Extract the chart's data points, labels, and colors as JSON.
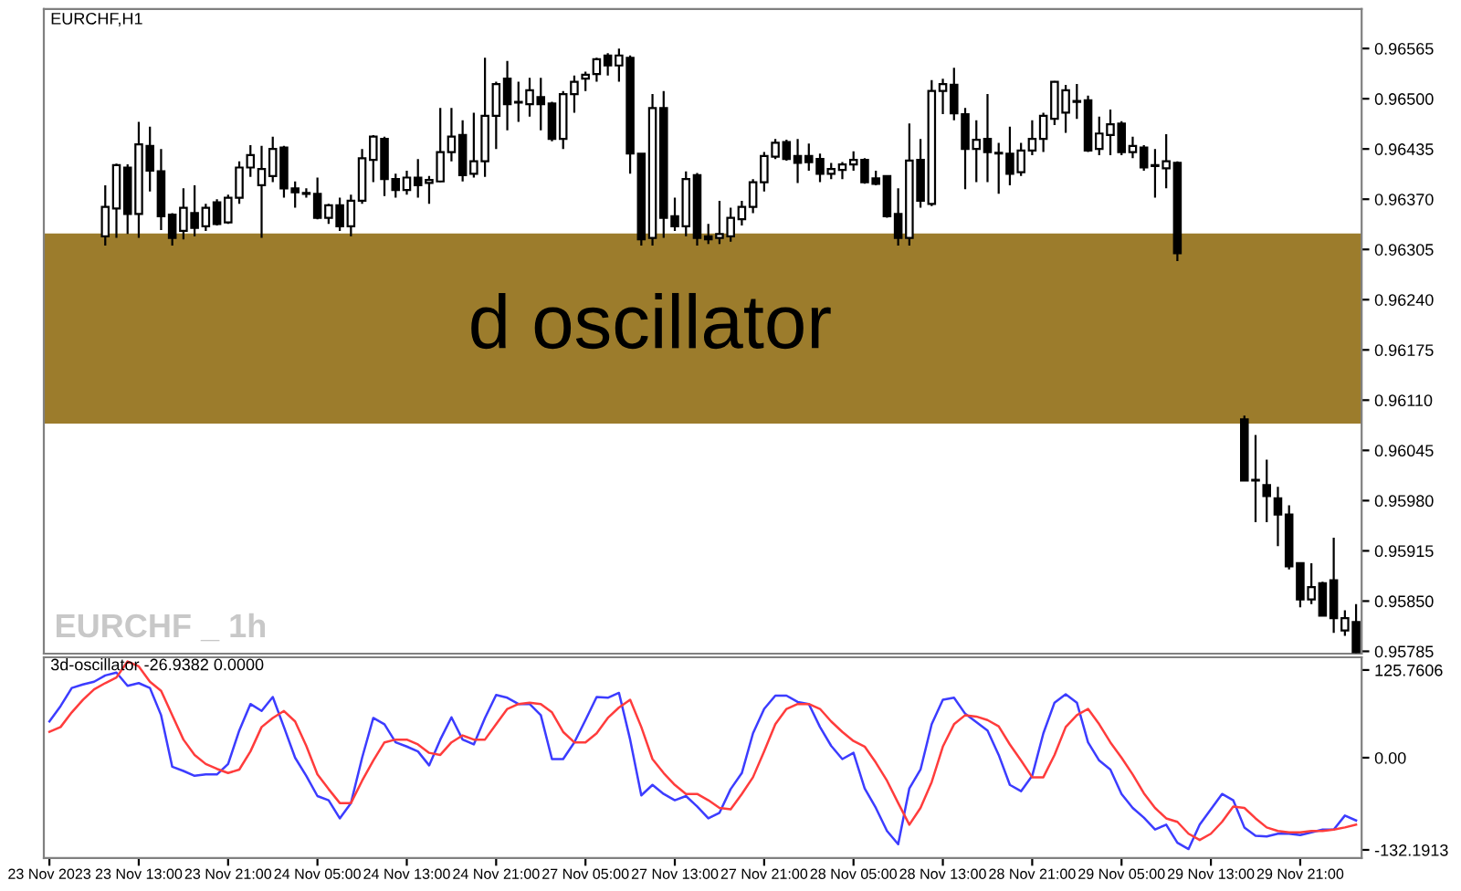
{
  "chart_data": [
    {
      "type": "candlestick",
      "title": "EURCHF,H1",
      "annotations": [
        "d oscillator",
        "EURCHF _ 1h"
      ],
      "tick_labels": "y",
      "ohlc": [
        null,
        null,
        null,
        null,
        null,
        [
          0.96322,
          0.96388,
          0.9631,
          0.9636
        ],
        [
          0.96358,
          0.96416,
          0.9632,
          0.96414
        ],
        [
          0.96411,
          0.96415,
          0.96325,
          0.96351
        ],
        [
          0.96351,
          0.9647,
          0.9632,
          0.96441
        ],
        [
          0.96439,
          0.96464,
          0.9638,
          0.96407
        ],
        [
          0.96406,
          0.96435,
          0.9633,
          0.96348
        ],
        [
          0.9635,
          0.96352,
          0.9631,
          0.9632
        ],
        [
          0.96329,
          0.96384,
          0.96318,
          0.96359
        ],
        [
          0.96352,
          0.96388,
          0.96322,
          0.96333
        ],
        [
          0.96335,
          0.96364,
          0.96329,
          0.96359
        ],
        [
          0.96366,
          0.9637,
          0.96336,
          0.96338
        ],
        [
          0.9634,
          0.96376,
          0.96338,
          0.96372
        ],
        [
          0.96372,
          0.96419,
          0.96364,
          0.96411
        ],
        [
          0.96411,
          0.9644,
          0.96399,
          0.96427
        ],
        [
          0.96388,
          0.96439,
          0.9632,
          0.96409
        ],
        [
          0.964,
          0.96451,
          0.96392,
          0.96435
        ],
        [
          0.96437,
          0.96439,
          0.96372,
          0.96384
        ],
        [
          0.96384,
          0.96393,
          0.96359,
          0.96379
        ],
        [
          0.96377,
          0.96384,
          0.96372,
          0.96378
        ],
        [
          0.96377,
          0.96398,
          0.96344,
          0.96346
        ],
        [
          0.96346,
          0.96364,
          0.96338,
          0.96362
        ],
        [
          0.96362,
          0.96372,
          0.96329,
          0.96335
        ],
        [
          0.96335,
          0.96376,
          0.96322,
          0.96368
        ],
        [
          0.96368,
          0.96435,
          0.96364,
          0.96423
        ],
        [
          0.96421,
          0.96453,
          0.96392,
          0.96451
        ],
        [
          0.96448,
          0.96451,
          0.96374,
          0.96396
        ],
        [
          0.96396,
          0.96403,
          0.96372,
          0.96382
        ],
        [
          0.96382,
          0.96407,
          0.96376,
          0.96398
        ],
        [
          0.96398,
          0.96422,
          0.96372,
          0.96388
        ],
        [
          0.96391,
          0.964,
          0.96364,
          0.96395
        ],
        [
          0.96393,
          0.96488,
          0.96392,
          0.96431
        ],
        [
          0.96431,
          0.96488,
          0.96419,
          0.96451
        ],
        [
          0.96453,
          0.96472,
          0.96393,
          0.96401
        ],
        [
          0.96403,
          0.96482,
          0.96398,
          0.96419
        ],
        [
          0.96419,
          0.96553,
          0.96399,
          0.96478
        ],
        [
          0.96478,
          0.96522,
          0.96435,
          0.96519
        ],
        [
          0.96526,
          0.96549,
          0.96459,
          0.96493
        ],
        [
          0.96495,
          0.96522,
          0.9647,
          0.96496
        ],
        [
          0.96493,
          0.96527,
          0.96477,
          0.96511
        ],
        [
          0.96502,
          0.96527,
          0.96459,
          0.96493
        ],
        [
          0.96494,
          0.96496,
          0.96445,
          0.96448
        ],
        [
          0.96448,
          0.9651,
          0.96435,
          0.96506
        ],
        [
          0.96506,
          0.9653,
          0.96482,
          0.96522
        ],
        [
          0.96526,
          0.96535,
          0.9651,
          0.96531
        ],
        [
          0.96532,
          0.96553,
          0.96522,
          0.96551
        ],
        [
          0.96556,
          0.96559,
          0.9653,
          0.96543
        ],
        [
          0.96543,
          0.96565,
          0.96522,
          0.96556
        ],
        [
          0.96553,
          0.96556,
          0.96403,
          0.96429
        ],
        [
          0.96429,
          0.96429,
          0.9631,
          0.96318
        ],
        [
          0.9632,
          0.96506,
          0.9631,
          0.96488
        ],
        [
          0.96488,
          0.9651,
          0.9632,
          0.96346
        ],
        [
          0.96348,
          0.96372,
          0.96329,
          0.96335
        ],
        [
          0.96335,
          0.96406,
          0.96322,
          0.96396
        ],
        [
          0.96401,
          0.96404,
          0.9631,
          0.9632
        ],
        [
          0.96322,
          0.96338,
          0.96312,
          0.96318
        ],
        [
          0.9632,
          0.96368,
          0.96312,
          0.96325
        ],
        [
          0.96322,
          0.96359,
          0.96315,
          0.96346
        ],
        [
          0.96344,
          0.96368,
          0.96336,
          0.9636
        ],
        [
          0.9636,
          0.96396,
          0.96352,
          0.96392
        ],
        [
          0.96392,
          0.96431,
          0.9638,
          0.96426
        ],
        [
          0.96425,
          0.96448,
          0.96422,
          0.96443
        ],
        [
          0.96444,
          0.96447,
          0.9642,
          0.96422
        ],
        [
          0.96426,
          0.96448,
          0.96391,
          0.96417
        ],
        [
          0.96426,
          0.96442,
          0.96407,
          0.96418
        ],
        [
          0.96422,
          0.96429,
          0.96392,
          0.96403
        ],
        [
          0.96403,
          0.96417,
          0.96396,
          0.96409
        ],
        [
          0.96408,
          0.96418,
          0.96396,
          0.96415
        ],
        [
          0.96415,
          0.96432,
          0.96407,
          0.96421
        ],
        [
          0.96421,
          0.96423,
          0.9639,
          0.96392
        ],
        [
          0.96397,
          0.96407,
          0.96388,
          0.9639
        ],
        [
          0.964,
          0.96401,
          0.96346,
          0.96348
        ],
        [
          0.96351,
          0.96384,
          0.9631,
          0.9632
        ],
        [
          0.9632,
          0.96468,
          0.9631,
          0.9642
        ],
        [
          0.96421,
          0.96448,
          0.96359,
          0.96368
        ],
        [
          0.96364,
          0.96524,
          0.96361,
          0.9651
        ],
        [
          0.9651,
          0.96526,
          0.9648,
          0.96519
        ],
        [
          0.96518,
          0.9654,
          0.96472,
          0.96481
        ],
        [
          0.9648,
          0.96488,
          0.96383,
          0.96435
        ],
        [
          0.96435,
          0.96472,
          0.96392,
          0.96447
        ],
        [
          0.96448,
          0.96506,
          0.96392,
          0.96431
        ],
        [
          0.9643,
          0.96443,
          0.96377,
          0.96429
        ],
        [
          0.96429,
          0.96464,
          0.96388,
          0.96403
        ],
        [
          0.96405,
          0.96443,
          0.964,
          0.96433
        ],
        [
          0.96433,
          0.96472,
          0.96427,
          0.96448
        ],
        [
          0.96448,
          0.96482,
          0.96431,
          0.96478
        ],
        [
          0.96474,
          0.96523,
          0.96466,
          0.96522
        ],
        [
          0.96482,
          0.96518,
          0.96456,
          0.96511
        ],
        [
          0.96497,
          0.96519,
          0.96474,
          0.96496
        ],
        [
          0.96498,
          0.96504,
          0.96431,
          0.96433
        ],
        [
          0.96435,
          0.96477,
          0.96427,
          0.96455
        ],
        [
          0.96453,
          0.96486,
          0.96427,
          0.96467
        ],
        [
          0.96468,
          0.96471,
          0.96427,
          0.96431
        ],
        [
          0.96431,
          0.96451,
          0.96423,
          0.96439
        ],
        [
          0.96437,
          0.9644,
          0.96407,
          0.96411
        ],
        [
          0.96414,
          0.96435,
          0.96372,
          0.96413
        ],
        [
          0.9641,
          0.96454,
          0.96384,
          0.96419
        ],
        [
          0.96417,
          0.96419,
          0.9629,
          0.963
        ],
        null,
        null,
        null,
        null,
        null,
        [
          0.96085,
          0.9609,
          0.96006,
          0.96006
        ],
        [
          0.96007,
          0.96065,
          0.95952,
          0.96006
        ],
        [
          0.96,
          0.96033,
          0.95952,
          0.95986
        ],
        [
          0.95983,
          0.95998,
          0.95921,
          0.95962
        ],
        [
          0.95962,
          0.95974,
          0.95891,
          0.95895
        ],
        [
          0.95899,
          0.95899,
          0.95842,
          0.95852
        ],
        [
          0.95852,
          0.95899,
          0.95846,
          0.95868
        ],
        [
          0.95873,
          0.95875,
          0.95831,
          0.95831
        ],
        [
          0.95877,
          0.95932,
          0.95809,
          0.95828
        ],
        [
          0.95812,
          0.95838,
          0.95805,
          0.95828
        ],
        [
          0.95823,
          0.95846,
          0.95783,
          0.95784
        ]
      ],
      "ylim": [
        0.95782,
        0.96616
      ],
      "yticks": [
        {
          "value": 0.96565,
          "label": "0.96565"
        },
        {
          "value": 0.965,
          "label": "0.96500"
        },
        {
          "value": 0.96435,
          "label": "0.96435"
        },
        {
          "value": 0.9637,
          "label": "0.96370"
        },
        {
          "value": 0.96305,
          "label": "0.96305"
        },
        {
          "value": 0.9624,
          "label": "0.96240"
        },
        {
          "value": 0.96175,
          "label": "0.96175"
        },
        {
          "value": 0.9611,
          "label": "0.96110"
        },
        {
          "value": 0.96045,
          "label": "0.96045"
        },
        {
          "value": 0.9598,
          "label": "0.95980"
        },
        {
          "value": 0.95915,
          "label": "0.95915"
        },
        {
          "value": 0.9585,
          "label": "0.95850"
        },
        {
          "value": 0.95785,
          "label": "0.95785"
        }
      ]
    },
    {
      "type": "line",
      "title": "3d-oscillator -26.9382 0.0000",
      "categories": [
        "23 Nov 2023",
        null,
        null,
        null,
        null,
        null,
        null,
        null,
        "23 Nov 13:00",
        null,
        null,
        null,
        null,
        null,
        null,
        null,
        "23 Nov 21:00",
        null,
        null,
        null,
        null,
        null,
        null,
        null,
        "24 Nov 05:00",
        null,
        null,
        null,
        null,
        null,
        null,
        null,
        "24 Nov 13:00",
        null,
        null,
        null,
        null,
        null,
        null,
        null,
        "24 Nov 21:00",
        null,
        null,
        null,
        null,
        null,
        null,
        null,
        "27 Nov 05:00",
        null,
        null,
        null,
        null,
        null,
        null,
        null,
        "27 Nov 13:00",
        null,
        null,
        null,
        null,
        null,
        null,
        null,
        "27 Nov 21:00",
        null,
        null,
        null,
        null,
        null,
        null,
        null,
        "28 Nov 05:00",
        null,
        null,
        null,
        null,
        null,
        null,
        null,
        "28 Nov 13:00",
        null,
        null,
        null,
        null,
        null,
        null,
        null,
        "28 Nov 21:00",
        null,
        null,
        null,
        null,
        null,
        null,
        null,
        "29 Nov 05:00",
        null,
        null,
        null,
        null,
        null,
        null,
        null,
        "29 Nov 13:00",
        null,
        null,
        null,
        null,
        null,
        null,
        null,
        "29 Nov 21:00",
        null,
        null,
        null,
        null,
        null
      ],
      "series": [
        {
          "color": "#3c3cff",
          "values": [
            52,
            74,
            100,
            105,
            109,
            118,
            122,
            103,
            107,
            100,
            61,
            -13,
            -19,
            -26,
            -24,
            -24,
            -9,
            39,
            77,
            67,
            87,
            44,
            0,
            -26,
            -55,
            -61,
            -87,
            -65,
            0,
            57,
            48,
            22,
            16,
            9,
            -11,
            26,
            58,
            26,
            19,
            57,
            90,
            86,
            77,
            77,
            61,
            -2,
            -2,
            22,
            54,
            87,
            86,
            93,
            26,
            -54,
            -39,
            -52,
            -61,
            -55,
            -70,
            -87,
            -79,
            -45,
            -22,
            35,
            70,
            89,
            89,
            80,
            77,
            44,
            17,
            -2,
            7,
            -44,
            -72,
            -105,
            -124,
            -44,
            -17,
            48,
            83,
            86,
            63,
            51,
            39,
            4,
            -39,
            -48,
            -26,
            35,
            79,
            91,
            79,
            22,
            -4,
            -17,
            -52,
            -72,
            -86,
            -103,
            -96,
            -122,
            -131,
            -96,
            -74,
            -52,
            -61,
            -100,
            -112,
            -113,
            -109,
            -109,
            -111,
            -107,
            -103,
            -103,
            -83,
            -90
          ]
        },
        {
          "color": "#ff3c3c",
          "values": [
            37,
            44,
            65,
            83,
            98,
            107,
            115,
            138,
            131,
            109,
            96,
            61,
            26,
            4,
            -9,
            -16,
            -22,
            -17,
            9,
            44,
            57,
            67,
            52,
            17,
            -24,
            -45,
            -65,
            -65,
            -33,
            -4,
            22,
            26,
            26,
            19,
            7,
            4,
            22,
            32,
            26,
            26,
            48,
            70,
            77,
            79,
            77,
            65,
            37,
            22,
            22,
            35,
            57,
            72,
            83,
            44,
            -2,
            -22,
            -39,
            -52,
            -52,
            -61,
            -72,
            -74,
            -52,
            -28,
            9,
            48,
            70,
            77,
            77,
            70,
            52,
            37,
            24,
            16,
            -7,
            -33,
            -65,
            -96,
            -72,
            -35,
            16,
            48,
            61,
            59,
            54,
            45,
            19,
            -4,
            -28,
            -28,
            4,
            44,
            61,
            70,
            48,
            22,
            0,
            -24,
            -51,
            -72,
            -87,
            -92,
            -109,
            -118,
            -109,
            -92,
            -70,
            -72,
            -87,
            -100,
            -105,
            -107,
            -107,
            -105,
            -105,
            -103,
            -100,
            -96
          ]
        }
      ],
      "ylim": [
        -144,
        144
      ],
      "yticks": [
        {
          "value": 125.7606,
          "label": "125.7606"
        },
        {
          "value": 0,
          "label": "0.00"
        },
        {
          "value": -132.1913,
          "label": "-132.1913"
        }
      ]
    }
  ]
}
